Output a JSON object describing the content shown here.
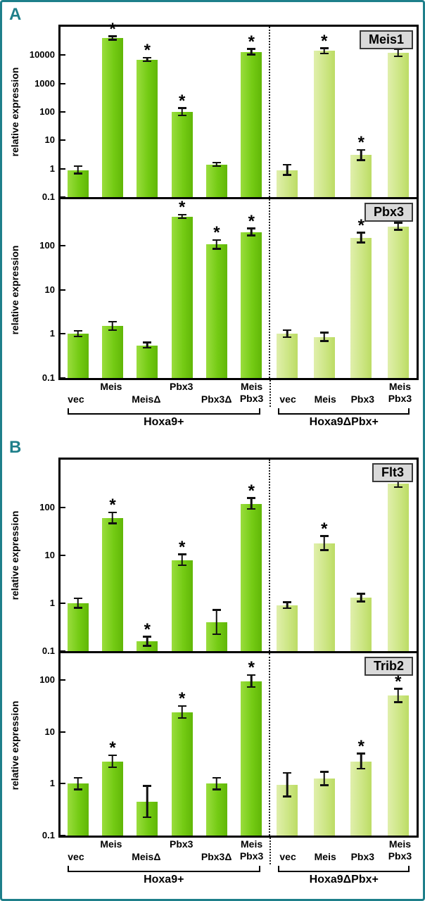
{
  "figure": {
    "panels": [
      {
        "label": "A"
      },
      {
        "label": "B"
      }
    ],
    "sig_marker": "*",
    "colors": {
      "frame": "#1e7f8a",
      "panel_letter": "#1e7f8a",
      "bar_group1": "#74cb14",
      "bar_group2": "#cde685",
      "gene_box_bg": "#d9d9d9"
    }
  },
  "chart_data": [
    {
      "type": "bar",
      "name": "Meis1",
      "ylabel": "relative expression",
      "yscale": "log",
      "ymin": 0.1,
      "ymax": 100000,
      "ticks": [
        0.1,
        1,
        10,
        100,
        1000,
        10000
      ],
      "groups": [
        {
          "name": "Hoxa9+",
          "categories": [
            "vec",
            "Meis",
            "MeisΔ",
            "Pbx3",
            "Pbx3Δ",
            "Meis\nPbx3"
          ],
          "values": [
            0.9,
            40000,
            7000,
            100,
            1.4,
            13000
          ],
          "err_factor": [
            1.35,
            1.15,
            1.15,
            1.35,
            1.15,
            1.25
          ],
          "star": [
            false,
            true,
            true,
            true,
            false,
            true
          ]
        },
        {
          "name": "Hoxa9ΔPbx+",
          "categories": [
            "vec",
            "Meis",
            "Pbx3",
            "Meis\nPbx3"
          ],
          "values": [
            0.9,
            14000,
            3,
            12000
          ],
          "err_factor": [
            1.5,
            1.25,
            1.5,
            1.35
          ],
          "star": [
            false,
            true,
            true,
            true
          ]
        }
      ]
    },
    {
      "type": "bar",
      "name": "Pbx3",
      "ylabel": "relative expression",
      "yscale": "log",
      "ymin": 0.1,
      "ymax": 1000,
      "ticks": [
        0.1,
        1,
        10,
        100
      ],
      "groups": [
        {
          "name": "Hoxa9+",
          "categories": [
            "vec",
            "Meis",
            "MeisΔ",
            "Pbx3",
            "Pbx3Δ",
            "Meis\nPbx3"
          ],
          "values": [
            1.0,
            1.5,
            0.55,
            450,
            105,
            200
          ],
          "err_factor": [
            1.15,
            1.25,
            1.15,
            1.1,
            1.25,
            1.2
          ],
          "star": [
            false,
            false,
            false,
            true,
            true,
            true
          ]
        },
        {
          "name": "Hoxa9ΔPbx+",
          "categories": [
            "vec",
            "Meis",
            "Pbx3",
            "Meis\nPbx3"
          ],
          "values": [
            1.0,
            0.85,
            150,
            270
          ],
          "err_factor": [
            1.2,
            1.25,
            1.3,
            1.2
          ],
          "star": [
            false,
            false,
            true,
            true
          ]
        }
      ]
    },
    {
      "type": "bar",
      "name": "Flt3",
      "ylabel": "relative expression",
      "yscale": "log",
      "ymin": 0.1,
      "ymax": 1000,
      "ticks": [
        0.1,
        1,
        10,
        100
      ],
      "groups": [
        {
          "name": "Hoxa9+",
          "categories": [
            "vec",
            "Meis",
            "MeisΔ",
            "Pbx3",
            "Pbx3Δ",
            "Meis\nPbx3"
          ],
          "values": [
            1.0,
            60,
            0.16,
            8,
            0.4,
            120
          ],
          "err_factor": [
            1.25,
            1.3,
            1.25,
            1.3,
            1.8,
            1.3
          ],
          "star": [
            false,
            true,
            true,
            true,
            false,
            true
          ]
        },
        {
          "name": "Hoxa9ΔPbx+",
          "categories": [
            "vec",
            "Meis",
            "Pbx3",
            "Meis\nPbx3"
          ],
          "values": [
            0.9,
            18,
            1.3,
            320
          ],
          "err_factor": [
            1.15,
            1.4,
            1.2,
            1.2
          ],
          "star": [
            false,
            true,
            false,
            true
          ]
        }
      ]
    },
    {
      "type": "bar",
      "name": "Trib2",
      "ylabel": "relative expression",
      "yscale": "log",
      "ymin": 0.1,
      "ymax": 300,
      "ticks": [
        0.1,
        1,
        10,
        100
      ],
      "groups": [
        {
          "name": "Hoxa9+",
          "categories": [
            "vec",
            "Meis",
            "MeisΔ",
            "Pbx3",
            "Pbx3Δ",
            "Meis\nPbx3"
          ],
          "values": [
            1.0,
            2.7,
            0.45,
            24,
            1.0,
            95
          ],
          "err_factor": [
            1.3,
            1.3,
            2.0,
            1.3,
            1.3,
            1.3
          ],
          "star": [
            false,
            true,
            false,
            true,
            false,
            true
          ]
        },
        {
          "name": "Hoxa9ΔPbx+",
          "categories": [
            "vec",
            "Meis",
            "Pbx3",
            "Meis\nPbx3"
          ],
          "values": [
            0.95,
            1.25,
            2.7,
            50
          ],
          "err_factor": [
            1.7,
            1.35,
            1.4,
            1.35
          ],
          "star": [
            false,
            false,
            true,
            true
          ]
        }
      ]
    }
  ]
}
